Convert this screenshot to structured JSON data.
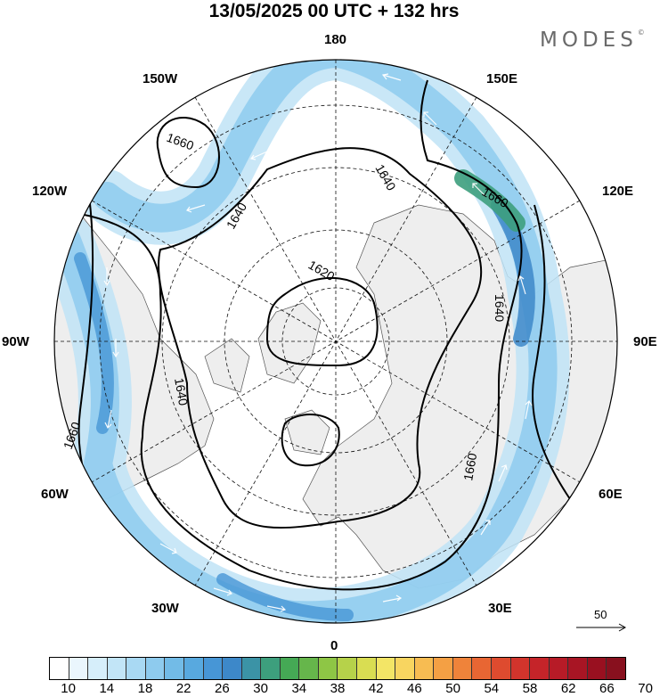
{
  "title": "13/05/2025  00 UTC  + 132 hrs",
  "logo": "MODES",
  "logo_mark": "©",
  "longitude_labels": {
    "lon_180": "180",
    "lon_150w": "150W",
    "lon_150e": "150E",
    "lon_120w": "120W",
    "lon_120e": "120E",
    "lon_90w": "90W",
    "lon_90e": "90E",
    "lon_60w": "60W",
    "lon_60e": "60E",
    "lon_30w": "30W",
    "lon_30e": "30E",
    "lon_0": "0"
  },
  "contour_labels": [
    "1660",
    "1640",
    "1640",
    "1620",
    "1660",
    "1640",
    "1660",
    "1660",
    "1640"
  ],
  "reference_vector": "50",
  "colorbar": {
    "ticks": [
      "10",
      "14",
      "18",
      "22",
      "26",
      "30",
      "34",
      "38",
      "42",
      "46",
      "50",
      "54",
      "58",
      "62",
      "66",
      "70"
    ],
    "colors": [
      "#ffffff",
      "#eaf6fd",
      "#d6eefa",
      "#c2e5f7",
      "#a9d9f3",
      "#8ecbee",
      "#72bbe7",
      "#58a9df",
      "#4796d6",
      "#3d88c9",
      "#3b93a6",
      "#3d9f7d",
      "#45a955",
      "#66b64b",
      "#8ec645",
      "#b6d24a",
      "#d9dd52",
      "#f3e566",
      "#f8d560",
      "#f7bc52",
      "#f4a044",
      "#ef833a",
      "#e86633",
      "#de4b2f",
      "#d2342c",
      "#c52429",
      "#b71b27",
      "#a81524",
      "#991020",
      "#88101e"
    ]
  }
}
